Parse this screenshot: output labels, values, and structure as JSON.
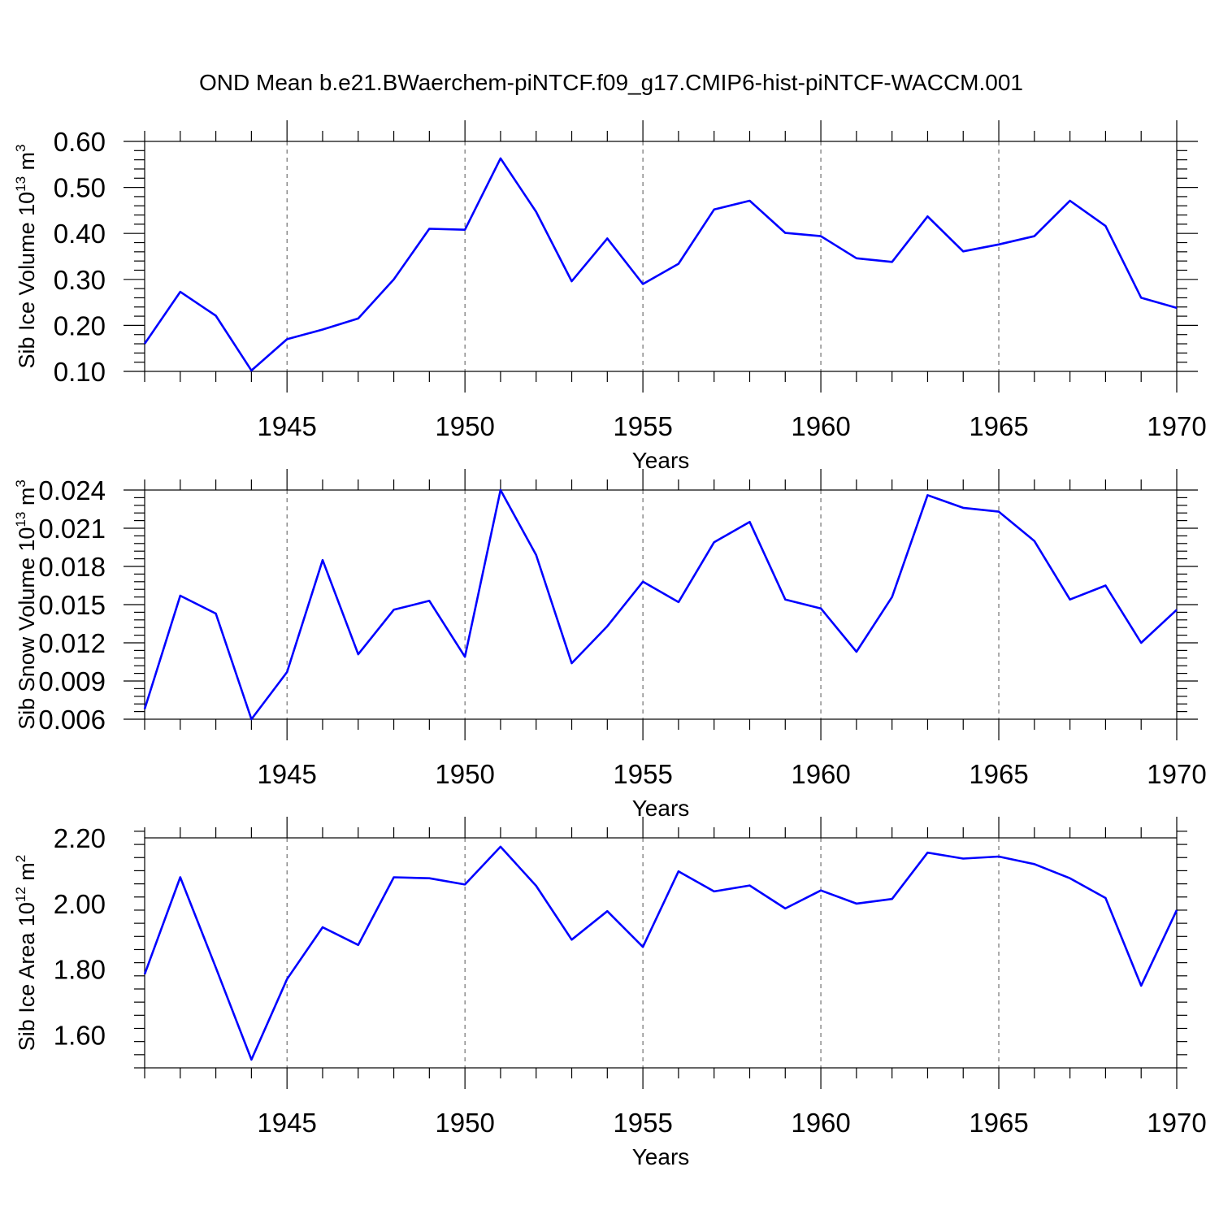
{
  "title": "OND Mean b.e21.BWaerchem-piNTCF.f09_g17.CMIP6-hist-piNTCF-WACCM.001",
  "line_color": "#0000ff",
  "chart_data": [
    {
      "type": "line",
      "ylabel": "Sib Ice Volume 10",
      "ylabel_exp": "13",
      "ylabel_unit": " m",
      "ylabel_unit_exp": "3",
      "xlabel": "Years",
      "xlim": [
        1941,
        1970
      ],
      "ylim": [
        0.1,
        0.6
      ],
      "xticks": [
        1945,
        1950,
        1955,
        1960,
        1965,
        1970
      ],
      "yticks": [
        0.1,
        0.2,
        0.3,
        0.4,
        0.5,
        0.6
      ],
      "ytick_labels": [
        "0.10",
        "0.20",
        "0.30",
        "0.40",
        "0.50",
        "0.60"
      ],
      "grid_x": true,
      "x": [
        1941,
        1942,
        1943,
        1944,
        1945,
        1946,
        1947,
        1948,
        1949,
        1950,
        1951,
        1952,
        1953,
        1954,
        1955,
        1956,
        1957,
        1958,
        1959,
        1960,
        1961,
        1962,
        1963,
        1964,
        1965,
        1966,
        1967,
        1968,
        1969,
        1970
      ],
      "values": [
        0.16,
        0.273,
        0.221,
        0.102,
        0.17,
        0.191,
        0.215,
        0.3,
        0.41,
        0.408,
        0.563,
        0.447,
        0.296,
        0.389,
        0.29,
        0.334,
        0.452,
        0.471,
        0.401,
        0.394,
        0.346,
        0.338,
        0.437,
        0.361,
        0.376,
        0.394,
        0.471,
        0.416,
        0.26,
        0.238
      ]
    },
    {
      "type": "line",
      "ylabel": "Sib Snow Volume 10",
      "ylabel_exp": "13",
      "ylabel_unit": " m",
      "ylabel_unit_exp": "3",
      "xlabel": "Years",
      "xlim": [
        1941,
        1970
      ],
      "ylim": [
        0.006,
        0.024
      ],
      "xticks": [
        1945,
        1950,
        1955,
        1960,
        1965,
        1970
      ],
      "yticks": [
        0.006,
        0.009,
        0.012,
        0.015,
        0.018,
        0.021,
        0.024
      ],
      "ytick_labels": [
        "0.006",
        "0.009",
        "0.012",
        "0.015",
        "0.018",
        "0.021",
        "0.024"
      ],
      "grid_x": true,
      "x": [
        1941,
        1942,
        1943,
        1944,
        1945,
        1946,
        1947,
        1948,
        1949,
        1950,
        1951,
        1952,
        1953,
        1954,
        1955,
        1956,
        1957,
        1958,
        1959,
        1960,
        1961,
        1962,
        1963,
        1964,
        1965,
        1966,
        1967,
        1968,
        1969,
        1970
      ],
      "values": [
        0.0068,
        0.0157,
        0.0143,
        0.006,
        0.0097,
        0.0185,
        0.0111,
        0.0146,
        0.0153,
        0.0109,
        0.024,
        0.0189,
        0.0104,
        0.0133,
        0.0168,
        0.0152,
        0.0199,
        0.0215,
        0.0154,
        0.0147,
        0.0113,
        0.0156,
        0.0236,
        0.0226,
        0.0223,
        0.02,
        0.0154,
        0.0165,
        0.012,
        0.0146
      ]
    },
    {
      "type": "line",
      "ylabel": "Sib Ice Area 10",
      "ylabel_exp": "12",
      "ylabel_unit": " m",
      "ylabel_unit_exp": "2",
      "xlabel": "Years",
      "xlim": [
        1941,
        1970
      ],
      "ylim": [
        1.5,
        2.2
      ],
      "xticks": [
        1945,
        1950,
        1955,
        1960,
        1965,
        1970
      ],
      "yticks": [
        1.6,
        1.8,
        2.0,
        2.2
      ],
      "ytick_labels": [
        "1.60",
        "1.80",
        "2.00",
        "2.20"
      ],
      "grid_x": true,
      "x": [
        1941,
        1942,
        1943,
        1944,
        1945,
        1946,
        1947,
        1948,
        1949,
        1950,
        1951,
        1952,
        1953,
        1954,
        1955,
        1956,
        1957,
        1958,
        1959,
        1960,
        1961,
        1962,
        1963,
        1964,
        1965,
        1966,
        1967,
        1968,
        1969,
        1970
      ],
      "values": [
        1.785,
        2.08,
        1.805,
        1.525,
        1.77,
        1.928,
        1.874,
        2.08,
        2.077,
        2.058,
        2.173,
        2.054,
        1.89,
        1.977,
        1.868,
        2.098,
        2.037,
        2.055,
        1.985,
        2.04,
        2.0,
        2.014,
        2.155,
        2.137,
        2.143,
        2.12,
        2.077,
        2.017,
        1.75,
        1.98
      ]
    }
  ]
}
